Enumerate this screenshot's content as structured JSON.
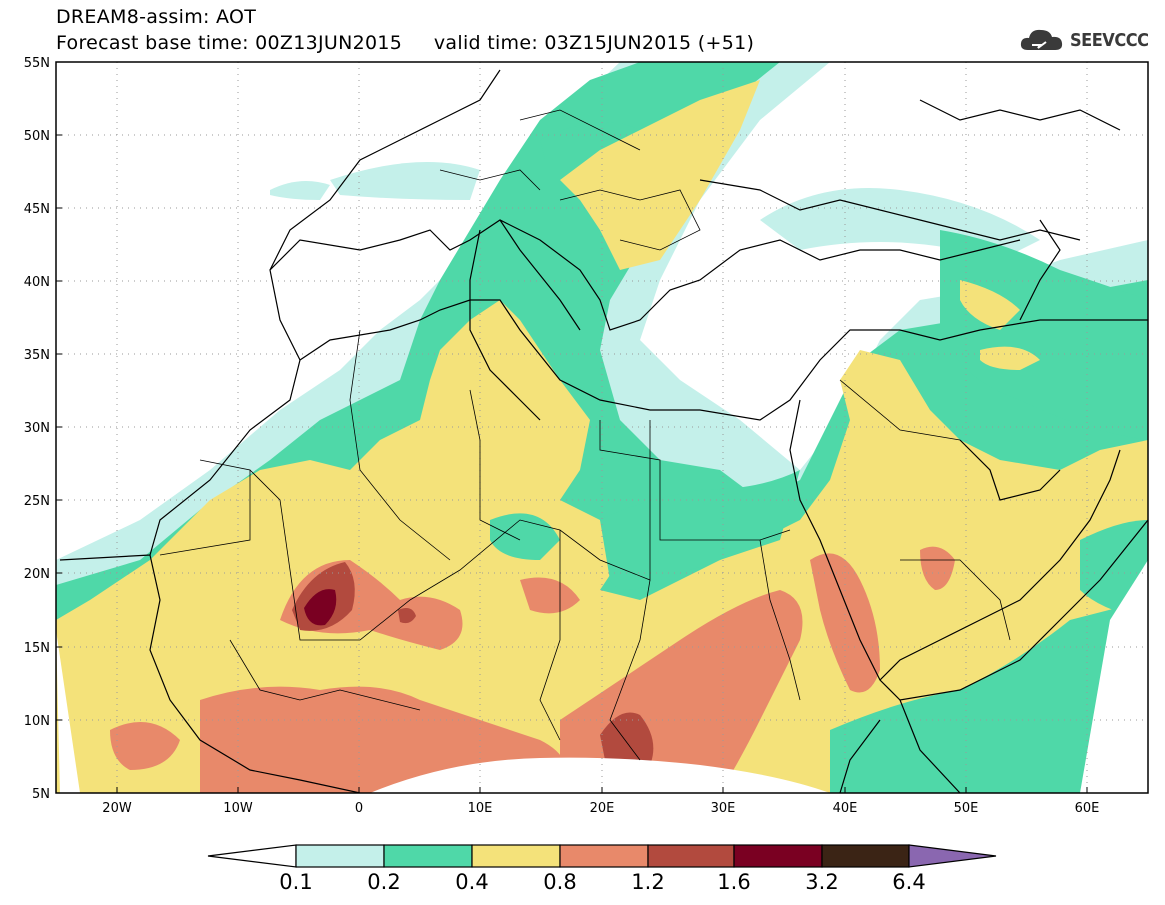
{
  "header": {
    "title_line1": "DREAM8-assim: AOT",
    "title_line2": "Forecast base time: 00Z13JUN2015     valid time: 03Z15JUN2015 (+51)",
    "brand": "SEEVCCC",
    "brand_icon": "cloud-logo-icon"
  },
  "map": {
    "lon_range": [
      -25,
      65
    ],
    "lat_range": [
      5,
      55
    ],
    "lat_labels": [
      "5N",
      "10N",
      "15N",
      "20N",
      "25N",
      "30N",
      "35N",
      "40N",
      "45N",
      "50N",
      "55N"
    ],
    "lon_labels": [
      "20W",
      "10W",
      "0",
      "10E",
      "20E",
      "30E",
      "40E",
      "50E",
      "60E"
    ],
    "grid": true
  },
  "colorbar": {
    "labels": [
      "0.1",
      "0.2",
      "0.4",
      "0.8",
      "1.2",
      "1.6",
      "3.2",
      "6.4"
    ],
    "colors": [
      "#c4f0ea",
      "#4fd8a8",
      "#f4e27a",
      "#e8896a",
      "#b24a3e",
      "#7a0022",
      "#3b2415"
    ],
    "under_color": "#ffffff",
    "over_color": "#8a67b0"
  }
}
